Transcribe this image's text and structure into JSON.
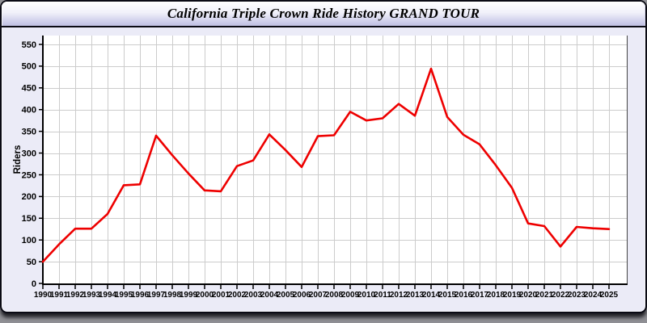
{
  "window": {
    "title": "California Triple Crown Ride History GRAND TOUR"
  },
  "colors": {
    "line": "#ee0000",
    "grid": "#cccccc",
    "axis": "#000000",
    "plot_background": "#ffffff",
    "content_background": "#ebebf7",
    "titlebar_top": "#ffffff",
    "titlebar_bottom": "#bfbfe1",
    "frame_border": "#0a0a14"
  },
  "chart_data": {
    "type": "line",
    "title": "California Triple Crown Ride History GRAND TOUR",
    "xlabel": "",
    "ylabel": "Riders",
    "ylim": [
      0,
      550
    ],
    "ytick_step": 50,
    "grid": true,
    "legend_position": "none",
    "x": [
      1990,
      1991,
      1992,
      1993,
      1994,
      1995,
      1996,
      1997,
      1998,
      1999,
      2000,
      2001,
      2002,
      2003,
      2004,
      2005,
      2006,
      2007,
      2008,
      2009,
      2010,
      2011,
      2012,
      2013,
      2014,
      2015,
      2016,
      2017,
      2018,
      2019,
      2020,
      2021,
      2022,
      2023,
      2024,
      2025
    ],
    "series": [
      {
        "name": "Riders",
        "color": "#ee0000",
        "values": [
          50,
          90,
          126,
          126,
          160,
          226,
          228,
          340,
          295,
          253,
          214,
          212,
          270,
          283,
          343,
          307,
          268,
          339,
          341,
          395,
          375,
          380,
          413,
          386,
          494,
          383,
          342,
          320,
          272,
          220,
          138,
          132,
          85,
          130,
          127,
          125
        ]
      }
    ]
  }
}
